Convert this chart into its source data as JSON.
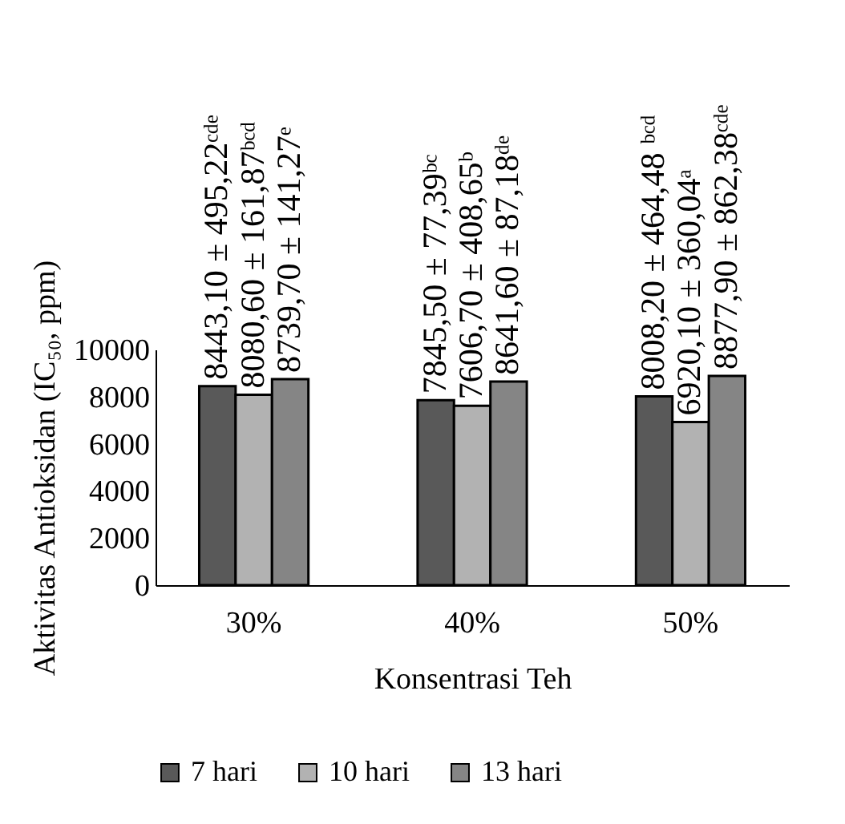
{
  "chart_data": {
    "type": "bar",
    "xlabel": "Konsentrasi Teh",
    "ylabel": "Aktivitas Antioksidan (IC₅₀, ppm)",
    "categories": [
      "30%",
      "40%",
      "50%"
    ],
    "series": [
      {
        "name": "7 hari",
        "color": "#595959",
        "values": [
          8443.1,
          7845.5,
          8008.2
        ],
        "value_labels": [
          "8443,10 ± 495,22ᶜᵈᵉ",
          "7845,50 ± 77,39ᵇᶜ",
          "8008,20 ± 464,48 ᵇᶜᵈ"
        ]
      },
      {
        "name": "10 hari",
        "color": "#b2b2b2",
        "values": [
          8080.6,
          7606.7,
          6920.1
        ],
        "value_labels": [
          "8080,60 ± 161,87ᵇᶜᵈ",
          "7606,70 ± 408,65ᵇ",
          "6920,10 ± 360,04ᵃ"
        ]
      },
      {
        "name": "13 hari",
        "color": "#858585",
        "values": [
          8739.7,
          8641.6,
          8877.9
        ],
        "value_labels": [
          "8739,70 ± 141,27ᵉ",
          "8641,60 ± 87,18ᵈᵉ",
          "8877,90 ± 862,38ᶜᵈᵉ"
        ]
      }
    ],
    "ylim": [
      0,
      10000
    ],
    "yticks": [
      0,
      2000,
      4000,
      6000,
      8000,
      10000
    ],
    "grid": false,
    "legend": "bottom"
  }
}
